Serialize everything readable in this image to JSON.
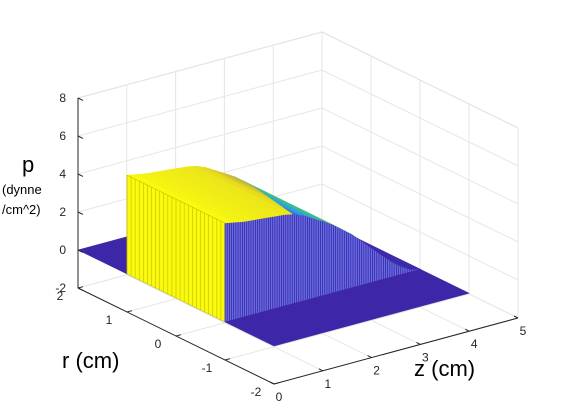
{
  "chart_data": {
    "type": "surface3d",
    "title": "",
    "zlabel": {
      "main": "p",
      "line2": "(dynne",
      "line3": "/cm^2)"
    },
    "xlabel": "z (cm)",
    "ylabel": "r (cm)",
    "xlim": [
      0,
      5
    ],
    "ylim": [
      -2,
      2
    ],
    "zlim": [
      -2,
      8
    ],
    "xticks": [
      "0",
      "1",
      "2",
      "3",
      "4",
      "5"
    ],
    "yticks": [
      "-2",
      "-1",
      "0",
      "1",
      "2"
    ],
    "zticks": [
      "-2",
      "0",
      "2",
      "4",
      "6",
      "8"
    ],
    "grid": true,
    "colormap": "parula",
    "x": [
      0,
      0.2,
      0.4,
      0.6,
      0.8,
      1.0,
      1.2,
      1.4,
      1.6,
      1.8,
      2.0,
      2.2,
      2.4,
      2.6,
      2.8,
      3.0,
      3.2,
      3.4,
      3.6,
      3.8,
      4.0
    ],
    "pressure_profile": [
      5.2,
      5.1,
      5.0,
      4.95,
      4.9,
      4.85,
      4.8,
      4.7,
      4.5,
      4.2,
      3.9,
      3.6,
      3.2,
      2.8,
      2.3,
      1.8,
      1.3,
      0.8,
      0.4,
      0.1,
      0
    ],
    "r_inner": 1.0,
    "r_outer": 2.0,
    "base_level": 0
  }
}
